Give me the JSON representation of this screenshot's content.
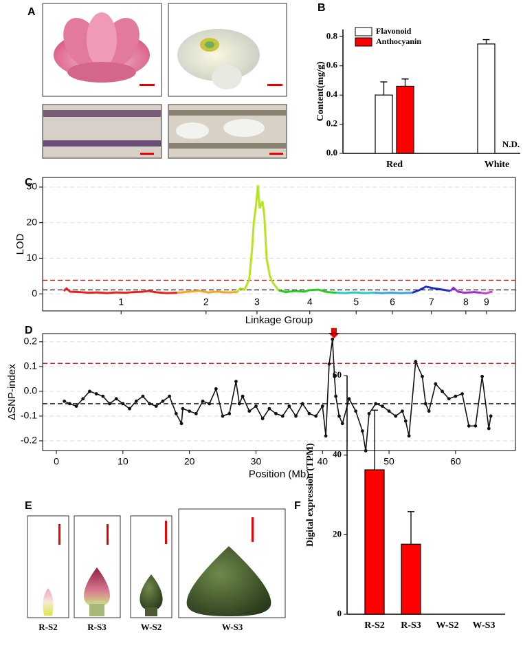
{
  "panel_labels": [
    "A",
    "B",
    "C",
    "D",
    "E",
    "F"
  ],
  "photo_labels": [
    "R-S2",
    "R-S3",
    "W-S2",
    "W-S3"
  ],
  "chart_data": [
    {
      "type": "bar",
      "y_label": "Content(mg/g)",
      "categories": [
        "Red",
        "White"
      ],
      "series": [
        {
          "name": "Flavonoid",
          "color": "#ffffff",
          "values": [
            0.4,
            0.75
          ],
          "errors": [
            0.09,
            0.03
          ]
        },
        {
          "name": "Anthocyanin",
          "color": "#ff0000",
          "values": [
            0.46,
            null
          ],
          "errors": [
            0.05,
            null
          ]
        }
      ],
      "annotation": "N.D.",
      "ylim": [
        0,
        0.85
      ],
      "yticks": [
        {
          "value": 0,
          "label": "0.0"
        },
        0.2,
        0.4,
        0.6,
        0.8
      ]
    },
    {
      "type": "line",
      "x_label": "Linkage Group",
      "y_label": "LOD",
      "series": [
        {
          "color": "#e8201e",
          "x": [
            1.6,
            2.2,
            3,
            5,
            7,
            9,
            11,
            13,
            15,
            17,
            19,
            20,
            22,
            24,
            26.3
          ],
          "values": [
            0.8,
            1.5,
            0.6,
            0.5,
            0.3,
            0.4,
            0.2,
            0.4,
            0.3,
            0.5,
            0.6,
            0.8,
            0.4,
            0.2,
            0.3
          ]
        },
        {
          "color": "#f5a623",
          "x": [
            26.3,
            28,
            30,
            31,
            33,
            35,
            37,
            39.4
          ],
          "values": [
            0.3,
            0.5,
            0.7,
            0.9,
            0.4,
            0.6,
            0.4,
            0.5
          ]
        },
        {
          "color": "#b5e61d",
          "x": [
            39.4,
            40,
            41,
            42,
            42.6,
            43,
            43.5,
            43.9,
            44.3,
            44.9,
            45.3,
            45.8,
            46.5,
            47.2,
            48.4
          ],
          "values": [
            0.5,
            1.5,
            1.2,
            4,
            12,
            20,
            25,
            30.5,
            24,
            26,
            22,
            10,
            5,
            3,
            1
          ]
        },
        {
          "color": "#22cc22",
          "x": [
            48.4,
            50,
            52,
            54,
            55,
            57,
            59,
            61
          ],
          "values": [
            1,
            0.5,
            0.8,
            0.6,
            1,
            1.2,
            0.5,
            0.3
          ]
        },
        {
          "color": "#22d0c0",
          "x": [
            61,
            63,
            65,
            67,
            69.3
          ],
          "values": [
            0.3,
            0.2,
            0.4,
            0.2,
            0.3
          ]
        },
        {
          "color": "#3fa0e0",
          "x": [
            69.3,
            71,
            73,
            75,
            77.5
          ],
          "values": [
            0.3,
            0.2,
            0.3,
            0.2,
            0.3
          ]
        },
        {
          "color": "#2030c0",
          "x": [
            77.5,
            79,
            80.5,
            82,
            84,
            85.8
          ],
          "values": [
            0.3,
            1,
            2,
            1.6,
            1.2,
            0.8
          ]
        },
        {
          "color": "#9a30d0",
          "x": [
            85.8,
            86.5,
            87.5,
            89,
            91,
            92.5
          ],
          "values": [
            0.8,
            1.7,
            0.6,
            0.3,
            0.5,
            0.3
          ]
        },
        {
          "color": "#d040d0",
          "x": [
            92.5,
            93.5,
            94.5,
            95
          ],
          "values": [
            0.3,
            0.1,
            0.5,
            0.6
          ]
        }
      ],
      "reference_lines": [
        {
          "value": 3.8,
          "color": "#e00000"
        },
        {
          "value": 1.1,
          "color": "#000000"
        }
      ],
      "xlim": [
        -3,
        100
      ],
      "xticks": [
        {
          "value": 14.1,
          "label": "1"
        },
        {
          "value": 32.6,
          "label": "2"
        },
        {
          "value": 43.7,
          "label": "3"
        },
        {
          "value": 55.2,
          "label": "4"
        },
        {
          "value": 65.3,
          "label": "5"
        },
        {
          "value": 73.2,
          "label": "6"
        },
        {
          "value": 81.7,
          "label": "7"
        },
        {
          "value": 89.2,
          "label": "8"
        },
        {
          "value": 93.7,
          "label": "9"
        }
      ],
      "ylim": [
        -4.8,
        32.7
      ],
      "yticks": [
        0,
        10,
        20,
        30
      ],
      "grid": true
    },
    {
      "type": "line",
      "x_label": "Position (Mb)",
      "y_label": "ΔSNP-index",
      "color": "#111111",
      "markers": true,
      "x": [
        1.2,
        2,
        3,
        4,
        5,
        6,
        7,
        8,
        9,
        10,
        11,
        12,
        13,
        14,
        15,
        16,
        17,
        18,
        18.8,
        19,
        20,
        21,
        22,
        23,
        24,
        25,
        26,
        27,
        27.5,
        28,
        29,
        30,
        31,
        32,
        33,
        34,
        35,
        36,
        37,
        38,
        39,
        40,
        40.5,
        41,
        41.5,
        41.8,
        42,
        42.5,
        43,
        44,
        45,
        46,
        46.5,
        47,
        48,
        49,
        50,
        51,
        52,
        52.5,
        53,
        54,
        55,
        55.5,
        56,
        57,
        58,
        59,
        60,
        61,
        62,
        63,
        64,
        65,
        65.3
      ],
      "values": [
        -0.04,
        -0.05,
        -0.06,
        -0.03,
        0.0,
        -0.01,
        -0.02,
        -0.05,
        -0.03,
        -0.05,
        -0.07,
        -0.04,
        -0.02,
        -0.05,
        -0.06,
        -0.04,
        -0.02,
        -0.09,
        -0.13,
        -0.07,
        -0.08,
        -0.09,
        -0.04,
        -0.05,
        0.01,
        -0.1,
        -0.09,
        0.04,
        -0.05,
        -0.02,
        -0.08,
        -0.06,
        -0.11,
        -0.07,
        -0.09,
        -0.1,
        -0.06,
        -0.1,
        -0.05,
        -0.09,
        -0.1,
        -0.06,
        -0.18,
        0.11,
        0.21,
        0.06,
        -0.02,
        -0.1,
        -0.13,
        -0.03,
        -0.08,
        -0.16,
        -0.24,
        -0.09,
        -0.05,
        -0.06,
        -0.08,
        -0.1,
        -0.08,
        -0.12,
        -0.18,
        0.12,
        0.06,
        -0.05,
        -0.08,
        0.03,
        0.0,
        -0.03,
        -0.02,
        -0.01,
        -0.14,
        -0.14,
        0.06,
        -0.15,
        -0.1
      ],
      "reference_lines": [
        {
          "value": 0.113,
          "color": "#e00000"
        },
        {
          "value": -0.05,
          "color": "#000000"
        }
      ],
      "xlim": [
        -2.07,
        69
      ],
      "xticks": [
        0,
        10,
        20,
        30,
        40,
        50,
        60
      ],
      "ylim": [
        -0.239,
        0.233
      ],
      "yticks": [
        -0.2,
        -0.1,
        {
          "value": 0,
          "label": "0.0"
        },
        0.1,
        0.2
      ],
      "grid": true
    },
    {
      "type": "bar",
      "y_label": "Digital expression (TPM)",
      "categories": [
        "R-S2",
        "R-S3",
        "W-S2",
        "W-S3"
      ],
      "values": [
        36.3,
        17.6,
        0,
        0
      ],
      "errors": [
        15,
        8.2,
        null,
        null
      ],
      "color": "#ff0000",
      "ylim": [
        0,
        60
      ],
      "yticks": [
        0,
        20,
        40,
        60
      ]
    }
  ]
}
